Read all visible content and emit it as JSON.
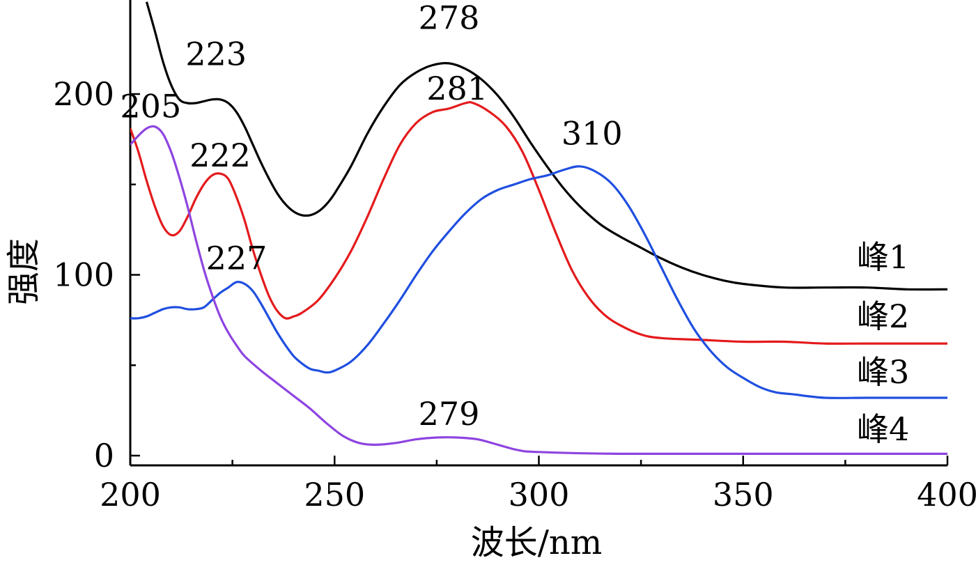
{
  "chart_data": {
    "type": "line",
    "title": "",
    "xlabel": "波长/nm",
    "ylabel": "强度",
    "xlim": [
      200,
      400
    ],
    "ylim": [
      -5,
      250
    ],
    "x_ticks": [
      200,
      250,
      300,
      350,
      400
    ],
    "y_ticks": [
      0,
      100,
      200
    ],
    "grid": false,
    "legend": "inline labels at right end of each curve",
    "series": [
      {
        "name": "峰1",
        "color": "#000000",
        "points": [
          [
            204,
            251
          ],
          [
            206,
            235
          ],
          [
            208,
            218
          ],
          [
            210,
            205
          ],
          [
            212,
            197
          ],
          [
            214,
            195
          ],
          [
            216,
            195
          ],
          [
            218,
            196
          ],
          [
            220,
            197
          ],
          [
            222,
            197
          ],
          [
            224,
            195
          ],
          [
            226,
            190
          ],
          [
            228,
            182
          ],
          [
            230,
            172
          ],
          [
            232,
            162
          ],
          [
            234,
            153
          ],
          [
            236,
            145
          ],
          [
            238,
            139
          ],
          [
            240,
            135
          ],
          [
            242,
            133
          ],
          [
            244,
            133
          ],
          [
            246,
            135
          ],
          [
            248,
            139
          ],
          [
            250,
            145
          ],
          [
            254,
            160
          ],
          [
            258,
            178
          ],
          [
            262,
            193
          ],
          [
            266,
            205
          ],
          [
            270,
            212
          ],
          [
            274,
            216
          ],
          [
            278,
            217
          ],
          [
            282,
            214
          ],
          [
            286,
            208
          ],
          [
            290,
            199
          ],
          [
            294,
            187
          ],
          [
            298,
            173
          ],
          [
            302,
            160
          ],
          [
            306,
            148
          ],
          [
            310,
            138
          ],
          [
            315,
            128
          ],
          [
            320,
            121
          ],
          [
            325,
            115
          ],
          [
            330,
            109
          ],
          [
            335,
            104
          ],
          [
            340,
            100
          ],
          [
            345,
            97
          ],
          [
            350,
            95
          ],
          [
            360,
            93
          ],
          [
            370,
            93
          ],
          [
            380,
            93
          ],
          [
            390,
            92
          ],
          [
            400,
            92
          ]
        ]
      },
      {
        "name": "峰2",
        "color": "#e41a1c",
        "points": [
          [
            200,
            181
          ],
          [
            202,
            168
          ],
          [
            204,
            152
          ],
          [
            206,
            138
          ],
          [
            208,
            127
          ],
          [
            210,
            122
          ],
          [
            212,
            124
          ],
          [
            214,
            132
          ],
          [
            216,
            142
          ],
          [
            218,
            150
          ],
          [
            220,
            155
          ],
          [
            222,
            156
          ],
          [
            224,
            153
          ],
          [
            226,
            143
          ],
          [
            228,
            130
          ],
          [
            230,
            114
          ],
          [
            232,
            100
          ],
          [
            234,
            88
          ],
          [
            236,
            80
          ],
          [
            238,
            76
          ],
          [
            240,
            77
          ],
          [
            242,
            79
          ],
          [
            246,
            86
          ],
          [
            250,
            98
          ],
          [
            254,
            113
          ],
          [
            258,
            132
          ],
          [
            262,
            153
          ],
          [
            266,
            172
          ],
          [
            270,
            184
          ],
          [
            274,
            190
          ],
          [
            278,
            192
          ],
          [
            282,
            195
          ],
          [
            284,
            195
          ],
          [
            288,
            190
          ],
          [
            292,
            182
          ],
          [
            296,
            168
          ],
          [
            300,
            147
          ],
          [
            304,
            124
          ],
          [
            308,
            103
          ],
          [
            312,
            88
          ],
          [
            316,
            78
          ],
          [
            320,
            72
          ],
          [
            325,
            67
          ],
          [
            330,
            65
          ],
          [
            340,
            64
          ],
          [
            350,
            63
          ],
          [
            360,
            63
          ],
          [
            370,
            62
          ],
          [
            380,
            62
          ],
          [
            390,
            62
          ],
          [
            400,
            62
          ]
        ]
      },
      {
        "name": "峰3",
        "color": "#1f4fe0",
        "points": [
          [
            200,
            76
          ],
          [
            202,
            76
          ],
          [
            204,
            77
          ],
          [
            206,
            79
          ],
          [
            208,
            81
          ],
          [
            210,
            82
          ],
          [
            212,
            82
          ],
          [
            214,
            81
          ],
          [
            216,
            81
          ],
          [
            218,
            82
          ],
          [
            220,
            86
          ],
          [
            222,
            90
          ],
          [
            224,
            93
          ],
          [
            226,
            96
          ],
          [
            228,
            95
          ],
          [
            230,
            91
          ],
          [
            232,
            84
          ],
          [
            234,
            76
          ],
          [
            236,
            68
          ],
          [
            238,
            61
          ],
          [
            240,
            55
          ],
          [
            242,
            51
          ],
          [
            244,
            48
          ],
          [
            246,
            47
          ],
          [
            248,
            46
          ],
          [
            250,
            47
          ],
          [
            254,
            52
          ],
          [
            258,
            61
          ],
          [
            262,
            73
          ],
          [
            266,
            86
          ],
          [
            270,
            100
          ],
          [
            274,
            113
          ],
          [
            278,
            124
          ],
          [
            282,
            134
          ],
          [
            286,
            142
          ],
          [
            290,
            147
          ],
          [
            294,
            150
          ],
          [
            298,
            153
          ],
          [
            302,
            155
          ],
          [
            306,
            158
          ],
          [
            310,
            160
          ],
          [
            314,
            157
          ],
          [
            318,
            150
          ],
          [
            322,
            138
          ],
          [
            326,
            122
          ],
          [
            330,
            104
          ],
          [
            334,
            86
          ],
          [
            338,
            70
          ],
          [
            342,
            58
          ],
          [
            346,
            49
          ],
          [
            350,
            43
          ],
          [
            354,
            38
          ],
          [
            358,
            35
          ],
          [
            362,
            34
          ],
          [
            370,
            32
          ],
          [
            380,
            32
          ],
          [
            390,
            32
          ],
          [
            400,
            32
          ]
        ]
      },
      {
        "name": "峰4",
        "color": "#8e44e0",
        "points": [
          [
            200,
            172
          ],
          [
            202,
            177
          ],
          [
            204,
            181
          ],
          [
            206,
            182
          ],
          [
            208,
            178
          ],
          [
            210,
            168
          ],
          [
            212,
            154
          ],
          [
            214,
            138
          ],
          [
            216,
            120
          ],
          [
            218,
            103
          ],
          [
            220,
            89
          ],
          [
            222,
            77
          ],
          [
            224,
            68
          ],
          [
            226,
            61
          ],
          [
            228,
            55
          ],
          [
            232,
            47
          ],
          [
            236,
            40
          ],
          [
            240,
            33
          ],
          [
            244,
            26
          ],
          [
            248,
            18
          ],
          [
            252,
            11
          ],
          [
            256,
            7
          ],
          [
            260,
            6
          ],
          [
            265,
            7
          ],
          [
            270,
            9
          ],
          [
            275,
            10
          ],
          [
            280,
            10
          ],
          [
            285,
            9
          ],
          [
            290,
            6
          ],
          [
            295,
            3
          ],
          [
            300,
            2
          ],
          [
            320,
            1
          ],
          [
            350,
            1
          ],
          [
            400,
            1
          ]
        ]
      }
    ],
    "peak_annotations": [
      {
        "text": "223",
        "x": 221,
        "y": 216
      },
      {
        "text": "278",
        "x": 278,
        "y": 236
      },
      {
        "text": "205",
        "x": 205,
        "y": 187
      },
      {
        "text": "281",
        "x": 280,
        "y": 197
      },
      {
        "text": "222",
        "x": 222,
        "y": 160
      },
      {
        "text": "310",
        "x": 313,
        "y": 172
      },
      {
        "text": "227",
        "x": 226,
        "y": 103
      },
      {
        "text": "279",
        "x": 278,
        "y": 17
      }
    ]
  }
}
